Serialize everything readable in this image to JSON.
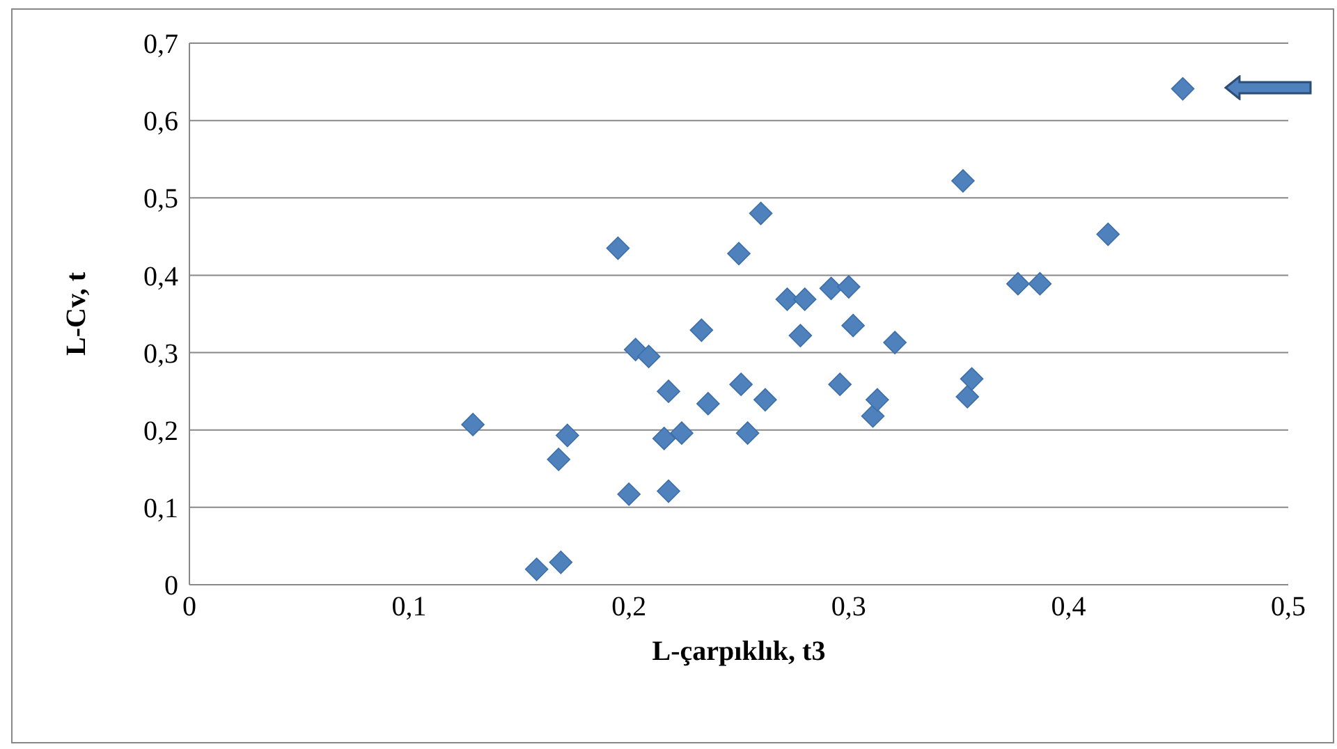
{
  "chart_data": {
    "type": "scatter",
    "xlabel": "L-çarpıklık, t3",
    "ylabel": "L-Cv, t",
    "marker": "diamond",
    "grid": "y",
    "x": [
      0.129,
      0.158,
      0.169,
      0.168,
      0.172,
      0.195,
      0.2,
      0.203,
      0.209,
      0.216,
      0.218,
      0.218,
      0.224,
      0.233,
      0.236,
      0.25,
      0.251,
      0.254,
      0.26,
      0.262,
      0.272,
      0.278,
      0.28,
      0.292,
      0.296,
      0.3,
      0.302,
      0.311,
      0.313,
      0.321,
      0.352,
      0.354,
      0.356,
      0.377,
      0.387,
      0.418,
      0.452
    ],
    "values": [
      0.207,
      0.02,
      0.029,
      0.162,
      0.193,
      0.435,
      0.117,
      0.304,
      0.295,
      0.189,
      0.25,
      0.121,
      0.196,
      0.329,
      0.234,
      0.428,
      0.259,
      0.196,
      0.48,
      0.239,
      0.369,
      0.322,
      0.369,
      0.383,
      0.259,
      0.385,
      0.335,
      0.218,
      0.239,
      0.313,
      0.522,
      0.243,
      0.266,
      0.389,
      0.389,
      0.453,
      0.641
    ],
    "color": "#4f81bd",
    "xlim": [
      0,
      0.5
    ],
    "xticks": [
      0,
      {
        "value": 0.1,
        "label": "0,1"
      },
      {
        "value": 0.2,
        "label": "0,2"
      },
      {
        "value": 0.3,
        "label": "0,3"
      },
      {
        "value": 0.4,
        "label": "0,4"
      },
      {
        "value": 0.5,
        "label": "0,5"
      }
    ],
    "ylim": [
      0,
      0.7
    ],
    "yticks": [
      0,
      {
        "value": 0.1,
        "label": "0,1"
      },
      {
        "value": 0.2,
        "label": "0,2"
      },
      {
        "value": 0.3,
        "label": "0,3"
      },
      {
        "value": 0.4,
        "label": "0,4"
      },
      {
        "value": 0.5,
        "label": "0,5"
      },
      {
        "value": 0.6,
        "label": "0,6"
      },
      {
        "value": 0.7,
        "label": "0,7"
      }
    ]
  }
}
